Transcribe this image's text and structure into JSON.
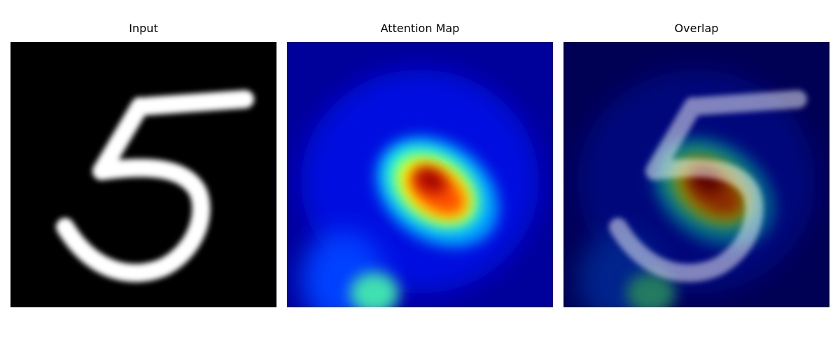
{
  "panels": [
    {
      "title": "Input"
    },
    {
      "title": "Attention Map"
    },
    {
      "title": "Overlap"
    }
  ]
}
